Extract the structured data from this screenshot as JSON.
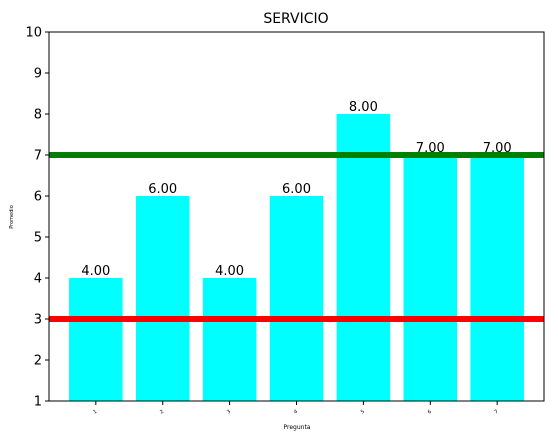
{
  "chart_data": {
    "type": "bar",
    "title": "SERVICIO",
    "xlabel": "Pregunta",
    "ylabel": "Promedio",
    "categories": [
      "1",
      "2",
      "3",
      "4",
      "5",
      "6",
      "7"
    ],
    "values": [
      4.0,
      6.0,
      4.0,
      6.0,
      8.0,
      7.0,
      7.0
    ],
    "data_labels": [
      "4.00",
      "6.00",
      "4.00",
      "6.00",
      "8.00",
      "7.00",
      "7.00"
    ],
    "yticks": [
      "1",
      "2",
      "3",
      "4",
      "5",
      "6",
      "7",
      "8",
      "9",
      "10"
    ],
    "ylim": [
      1,
      10
    ],
    "grid": false,
    "bar_color": "#00ffff",
    "reference_lines": [
      {
        "value": 3,
        "color": "#ff0000"
      },
      {
        "value": 7,
        "color": "#008000"
      }
    ]
  }
}
